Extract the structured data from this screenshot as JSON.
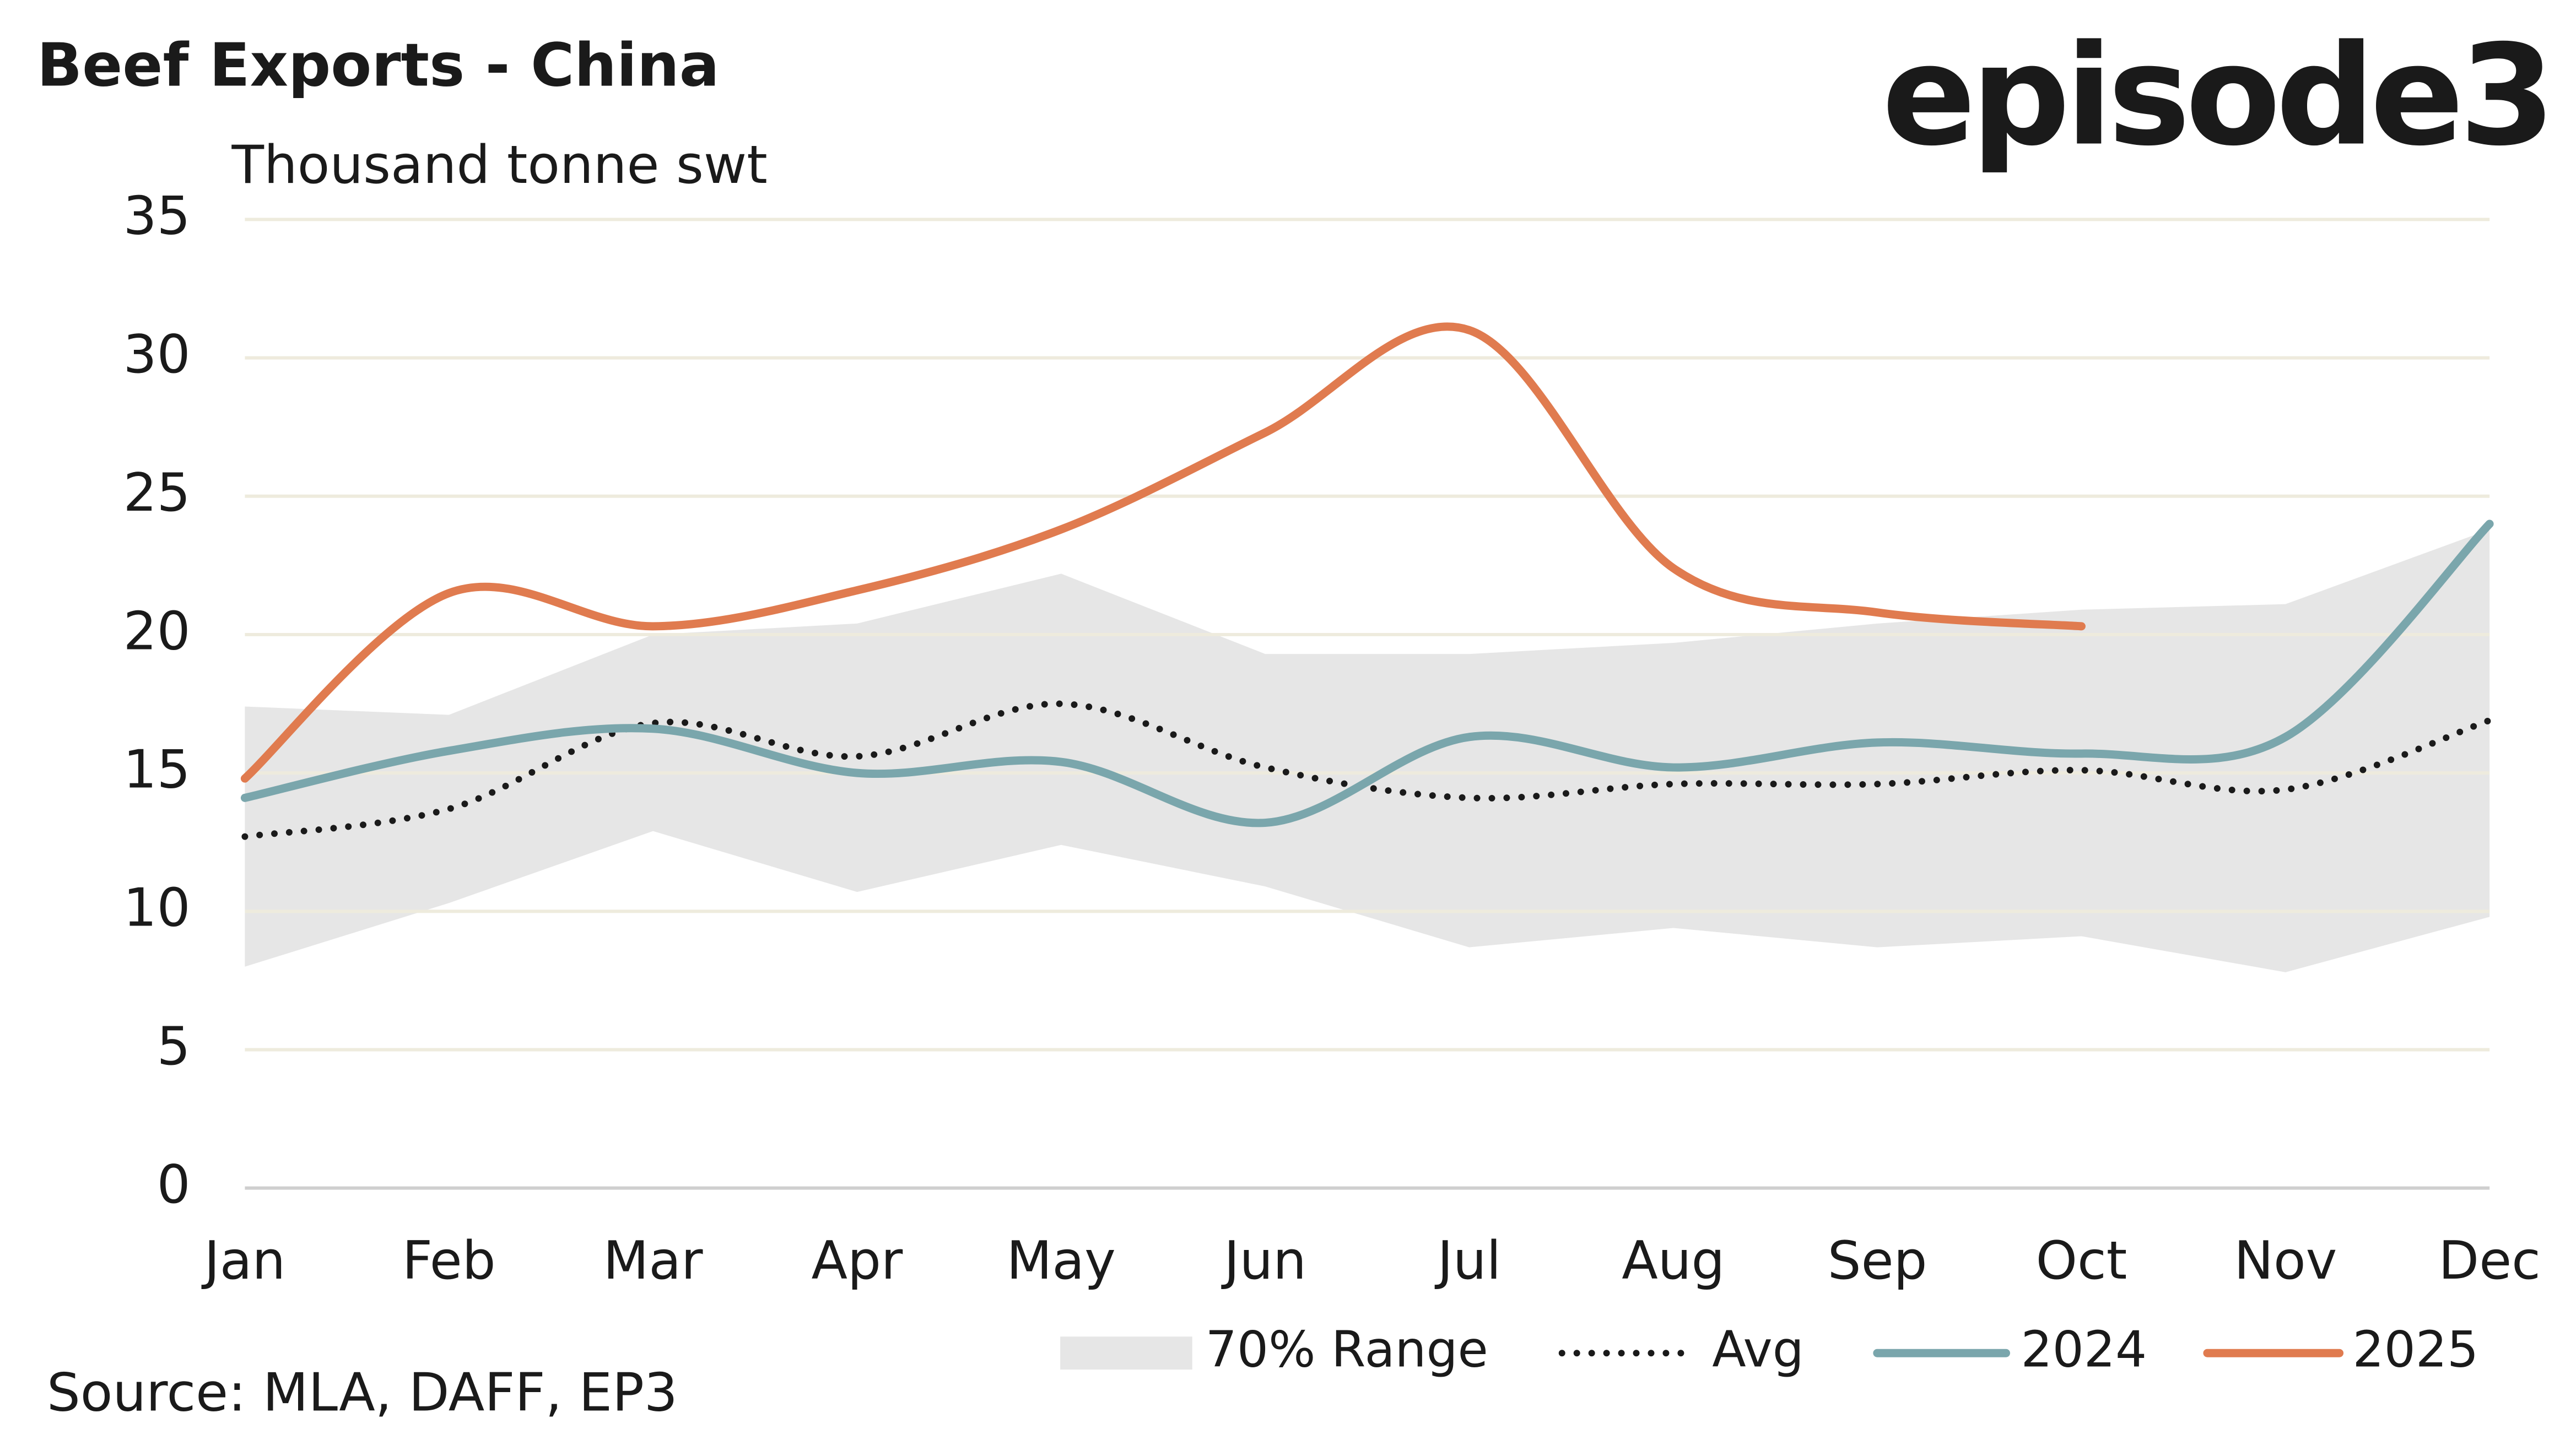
{
  "chart_data": {
    "type": "line",
    "title": "Beef Exports - China",
    "y_label": "Thousand tonne swt",
    "logo": "episode3",
    "source": "Source: MLA, DAFF, EP3",
    "categories": [
      "Jan",
      "Feb",
      "Mar",
      "Apr",
      "May",
      "Jun",
      "Jul",
      "Aug",
      "Sep",
      "Oct",
      "Nov",
      "Dec"
    ],
    "range": {
      "name": "70% Range",
      "color": "#e6e6e6",
      "upper": [
        17.4,
        17.1,
        20.0,
        20.4,
        22.2,
        19.3,
        19.3,
        19.7,
        20.4,
        20.9,
        21.1,
        23.8
      ],
      "lower": [
        8.0,
        10.3,
        12.9,
        10.7,
        12.4,
        10.9,
        8.7,
        9.4,
        8.7,
        9.1,
        7.8,
        9.8
      ]
    },
    "series": [
      {
        "name": "Avg",
        "color": "#1a1a1a",
        "style": "dotted",
        "values": [
          12.7,
          13.7,
          16.8,
          15.6,
          17.5,
          15.2,
          14.1,
          14.6,
          14.6,
          15.1,
          14.4,
          16.9
        ]
      },
      {
        "name": "2024",
        "color": "#7aa6ac",
        "style": "solid",
        "values": [
          14.1,
          15.8,
          16.6,
          15.0,
          15.4,
          13.2,
          16.3,
          15.2,
          16.1,
          15.7,
          16.3,
          24.0
        ]
      },
      {
        "name": "2025",
        "color": "#e07b4f",
        "style": "solid",
        "values": [
          14.8,
          21.5,
          20.3,
          21.6,
          23.8,
          27.3,
          31.0,
          22.4,
          20.8,
          20.3,
          null,
          null
        ]
      }
    ],
    "ylim": [
      0,
      35
    ],
    "yticks": [
      0,
      5,
      10,
      15,
      20,
      25,
      30,
      35
    ],
    "grid": true,
    "smooth": true
  }
}
